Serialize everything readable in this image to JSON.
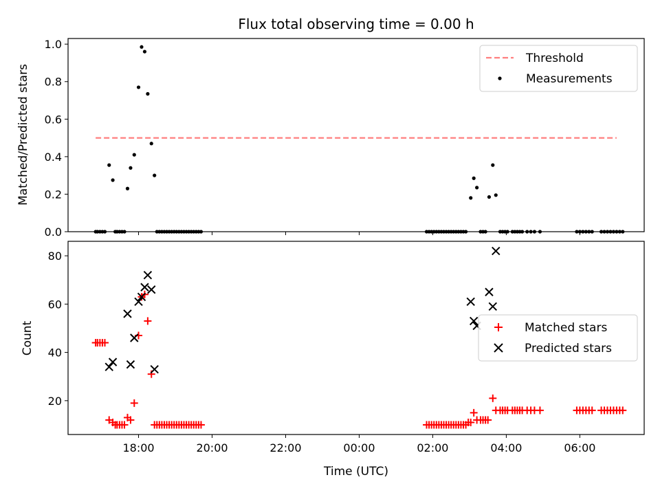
{
  "chart_data": [
    {
      "type": "scatter",
      "title": "Flux total observing time = 0.00 h",
      "xlabel": "",
      "ylabel": "Matched/Predicted stars",
      "ylim": [
        0.0,
        1.03
      ],
      "yticks": [
        "0.0",
        "0.2",
        "0.4",
        "0.6",
        "0.8",
        "1.0"
      ],
      "legend_position": "top-right",
      "threshold": {
        "name": "Threshold",
        "value": 0.5,
        "x_range": [
          "16:50",
          "07:00"
        ],
        "color": "#ff7f7f",
        "style": "dashed"
      },
      "series": [
        {
          "name": "Measurements",
          "color": "#000000",
          "marker": "dot",
          "points": [
            [
              "16:50",
              0
            ],
            [
              "16:53",
              0
            ],
            [
              "16:57",
              0
            ],
            [
              "17:01",
              0
            ],
            [
              "17:05",
              0
            ],
            [
              "17:12",
              0.355
            ],
            [
              "17:18",
              0.275
            ],
            [
              "17:22",
              0
            ],
            [
              "17:25",
              0
            ],
            [
              "17:29",
              0
            ],
            [
              "17:33",
              0
            ],
            [
              "17:37",
              0
            ],
            [
              "17:42",
              0.23
            ],
            [
              "17:47",
              0.34
            ],
            [
              "17:53",
              0.41
            ],
            [
              "18:00",
              0.77
            ],
            [
              "18:05",
              0.985
            ],
            [
              "18:10",
              0.96
            ],
            [
              "18:15",
              0.735
            ],
            [
              "18:21",
              0.47
            ],
            [
              "18:26",
              0.3
            ],
            [
              "18:30",
              0
            ],
            [
              "18:34",
              0
            ],
            [
              "18:38",
              0
            ],
            [
              "18:42",
              0
            ],
            [
              "18:46",
              0
            ],
            [
              "18:50",
              0
            ],
            [
              "18:54",
              0
            ],
            [
              "18:58",
              0
            ],
            [
              "19:02",
              0
            ],
            [
              "19:06",
              0
            ],
            [
              "19:10",
              0
            ],
            [
              "19:14",
              0
            ],
            [
              "19:18",
              0
            ],
            [
              "19:22",
              0
            ],
            [
              "19:26",
              0
            ],
            [
              "19:30",
              0
            ],
            [
              "19:34",
              0
            ],
            [
              "19:38",
              0
            ],
            [
              "19:42",
              0
            ],
            [
              "01:50",
              0
            ],
            [
              "01:54",
              0
            ],
            [
              "01:58",
              0
            ],
            [
              "02:02",
              0
            ],
            [
              "02:06",
              0
            ],
            [
              "02:10",
              0
            ],
            [
              "02:14",
              0
            ],
            [
              "02:18",
              0
            ],
            [
              "02:22",
              0
            ],
            [
              "02:26",
              0
            ],
            [
              "02:30",
              0
            ],
            [
              "02:34",
              0
            ],
            [
              "02:38",
              0
            ],
            [
              "02:42",
              0
            ],
            [
              "02:46",
              0
            ],
            [
              "02:50",
              0
            ],
            [
              "02:54",
              0
            ],
            [
              "03:02",
              0.18
            ],
            [
              "03:07",
              0.285
            ],
            [
              "03:12",
              0.235
            ],
            [
              "03:18",
              0
            ],
            [
              "03:22",
              0
            ],
            [
              "03:26",
              0
            ],
            [
              "03:32",
              0.185
            ],
            [
              "03:38",
              0.355
            ],
            [
              "03:43",
              0.195
            ],
            [
              "03:50",
              0
            ],
            [
              "03:54",
              0
            ],
            [
              "03:58",
              0
            ],
            [
              "04:02",
              0
            ],
            [
              "04:10",
              0
            ],
            [
              "04:14",
              0
            ],
            [
              "04:18",
              0
            ],
            [
              "04:22",
              0
            ],
            [
              "04:26",
              0
            ],
            [
              "04:34",
              0
            ],
            [
              "04:40",
              0
            ],
            [
              "04:46",
              0
            ],
            [
              "04:55",
              0
            ],
            [
              "05:55",
              0
            ],
            [
              "06:00",
              0
            ],
            [
              "06:05",
              0
            ],
            [
              "06:10",
              0
            ],
            [
              "06:15",
              0
            ],
            [
              "06:20",
              0
            ],
            [
              "06:35",
              0
            ],
            [
              "06:40",
              0
            ],
            [
              "06:45",
              0
            ],
            [
              "06:50",
              0
            ],
            [
              "06:55",
              0
            ],
            [
              "07:00",
              0
            ],
            [
              "07:05",
              0
            ],
            [
              "07:10",
              0
            ]
          ]
        }
      ]
    },
    {
      "type": "scatter",
      "title": "",
      "xlabel": "Time (UTC)",
      "ylabel": "Count",
      "ylim": [
        6,
        86
      ],
      "yticks": [
        "20",
        "40",
        "60",
        "80"
      ],
      "x_range": [
        "16:05",
        "07:45"
      ],
      "xticks": [
        "18:00",
        "20:00",
        "22:00",
        "00:00",
        "02:00",
        "04:00",
        "06:00"
      ],
      "legend_position": "right",
      "series": [
        {
          "name": "Matched stars",
          "color": "#ff0000",
          "marker": "plus",
          "points": [
            [
              "16:50",
              44
            ],
            [
              "16:53",
              44
            ],
            [
              "16:57",
              44
            ],
            [
              "17:01",
              44
            ],
            [
              "17:05",
              44
            ],
            [
              "17:12",
              12
            ],
            [
              "17:18",
              11
            ],
            [
              "17:22",
              10
            ],
            [
              "17:25",
              10
            ],
            [
              "17:29",
              10
            ],
            [
              "17:33",
              10
            ],
            [
              "17:37",
              10
            ],
            [
              "17:42",
              13
            ],
            [
              "17:47",
              12
            ],
            [
              "17:53",
              19
            ],
            [
              "18:00",
              47
            ],
            [
              "18:05",
              63
            ],
            [
              "18:10",
              64
            ],
            [
              "18:15",
              53
            ],
            [
              "18:21",
              31
            ],
            [
              "18:26",
              10
            ],
            [
              "18:30",
              10
            ],
            [
              "18:34",
              10
            ],
            [
              "18:38",
              10
            ],
            [
              "18:42",
              10
            ],
            [
              "18:46",
              10
            ],
            [
              "18:50",
              10
            ],
            [
              "18:54",
              10
            ],
            [
              "18:58",
              10
            ],
            [
              "19:02",
              10
            ],
            [
              "19:06",
              10
            ],
            [
              "19:10",
              10
            ],
            [
              "19:14",
              10
            ],
            [
              "19:18",
              10
            ],
            [
              "19:22",
              10
            ],
            [
              "19:26",
              10
            ],
            [
              "19:30",
              10
            ],
            [
              "19:34",
              10
            ],
            [
              "19:38",
              10
            ],
            [
              "19:42",
              10
            ],
            [
              "01:50",
              10
            ],
            [
              "01:54",
              10
            ],
            [
              "01:58",
              10
            ],
            [
              "02:02",
              10
            ],
            [
              "02:06",
              10
            ],
            [
              "02:10",
              10
            ],
            [
              "02:14",
              10
            ],
            [
              "02:18",
              10
            ],
            [
              "02:22",
              10
            ],
            [
              "02:26",
              10
            ],
            [
              "02:30",
              10
            ],
            [
              "02:34",
              10
            ],
            [
              "02:38",
              10
            ],
            [
              "02:42",
              10
            ],
            [
              "02:46",
              10
            ],
            [
              "02:50",
              10
            ],
            [
              "02:54",
              10
            ],
            [
              "02:58",
              11
            ],
            [
              "03:02",
              11
            ],
            [
              "03:07",
              15
            ],
            [
              "03:12",
              12
            ],
            [
              "03:18",
              12
            ],
            [
              "03:22",
              12
            ],
            [
              "03:26",
              12
            ],
            [
              "03:30",
              12
            ],
            [
              "03:38",
              21
            ],
            [
              "03:43",
              16
            ],
            [
              "03:50",
              16
            ],
            [
              "03:54",
              16
            ],
            [
              "03:58",
              16
            ],
            [
              "04:02",
              16
            ],
            [
              "04:10",
              16
            ],
            [
              "04:14",
              16
            ],
            [
              "04:18",
              16
            ],
            [
              "04:22",
              16
            ],
            [
              "04:26",
              16
            ],
            [
              "04:34",
              16
            ],
            [
              "04:40",
              16
            ],
            [
              "04:46",
              16
            ],
            [
              "04:55",
              16
            ],
            [
              "05:55",
              16
            ],
            [
              "06:00",
              16
            ],
            [
              "06:05",
              16
            ],
            [
              "06:10",
              16
            ],
            [
              "06:15",
              16
            ],
            [
              "06:20",
              16
            ],
            [
              "06:35",
              16
            ],
            [
              "06:40",
              16
            ],
            [
              "06:45",
              16
            ],
            [
              "06:50",
              16
            ],
            [
              "06:55",
              16
            ],
            [
              "07:00",
              16
            ],
            [
              "07:05",
              16
            ],
            [
              "07:10",
              16
            ]
          ]
        },
        {
          "name": "Predicted stars",
          "color": "#000000",
          "marker": "x",
          "points": [
            [
              "17:12",
              34
            ],
            [
              "17:18",
              36
            ],
            [
              "17:42",
              56
            ],
            [
              "17:47",
              35
            ],
            [
              "17:53",
              46
            ],
            [
              "18:00",
              61
            ],
            [
              "18:05",
              63
            ],
            [
              "18:10",
              67
            ],
            [
              "18:15",
              72
            ],
            [
              "18:21",
              66
            ],
            [
              "18:26",
              33
            ],
            [
              "03:02",
              61
            ],
            [
              "03:07",
              53
            ],
            [
              "03:12",
              51
            ],
            [
              "03:32",
              65
            ],
            [
              "03:38",
              59
            ],
            [
              "03:43",
              82
            ]
          ]
        }
      ]
    }
  ]
}
